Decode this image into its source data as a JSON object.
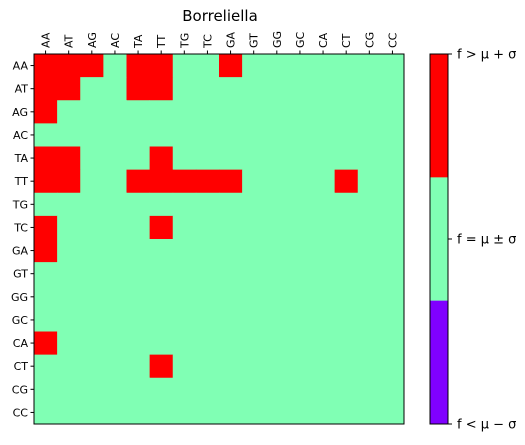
{
  "chart_data": {
    "type": "heatmap",
    "title": "Borreliella",
    "xlabel": "",
    "ylabel": "",
    "x_categories": [
      "AA",
      "AT",
      "AG",
      "AC",
      "TA",
      "TT",
      "TG",
      "TC",
      "GA",
      "GT",
      "GG",
      "GC",
      "CA",
      "CT",
      "CG",
      "CC"
    ],
    "y_categories": [
      "AA",
      "AT",
      "AG",
      "AC",
      "TA",
      "TT",
      "TG",
      "TC",
      "GA",
      "GT",
      "GG",
      "GC",
      "CA",
      "CT",
      "CG",
      "CC"
    ],
    "values_legend": {
      "1": "above",
      "0": "within",
      "-1": "below"
    },
    "values": [
      [
        1,
        1,
        1,
        0,
        1,
        1,
        0,
        0,
        1,
        0,
        0,
        0,
        0,
        0,
        0,
        0
      ],
      [
        1,
        1,
        0,
        0,
        1,
        1,
        0,
        0,
        0,
        0,
        0,
        0,
        0,
        0,
        0,
        0
      ],
      [
        1,
        0,
        0,
        0,
        0,
        0,
        0,
        0,
        0,
        0,
        0,
        0,
        0,
        0,
        0,
        0
      ],
      [
        0,
        0,
        0,
        0,
        0,
        0,
        0,
        0,
        0,
        0,
        0,
        0,
        0,
        0,
        0,
        0
      ],
      [
        1,
        1,
        0,
        0,
        0,
        1,
        0,
        0,
        0,
        0,
        0,
        0,
        0,
        0,
        0,
        0
      ],
      [
        1,
        1,
        0,
        0,
        1,
        1,
        1,
        1,
        1,
        0,
        0,
        0,
        0,
        1,
        0,
        0
      ],
      [
        0,
        0,
        0,
        0,
        0,
        0,
        0,
        0,
        0,
        0,
        0,
        0,
        0,
        0,
        0,
        0
      ],
      [
        1,
        0,
        0,
        0,
        0,
        1,
        0,
        0,
        0,
        0,
        0,
        0,
        0,
        0,
        0,
        0
      ],
      [
        1,
        0,
        0,
        0,
        0,
        0,
        0,
        0,
        0,
        0,
        0,
        0,
        0,
        0,
        0,
        0
      ],
      [
        0,
        0,
        0,
        0,
        0,
        0,
        0,
        0,
        0,
        0,
        0,
        0,
        0,
        0,
        0,
        0
      ],
      [
        0,
        0,
        0,
        0,
        0,
        0,
        0,
        0,
        0,
        0,
        0,
        0,
        0,
        0,
        0,
        0
      ],
      [
        0,
        0,
        0,
        0,
        0,
        0,
        0,
        0,
        0,
        0,
        0,
        0,
        0,
        0,
        0,
        0
      ],
      [
        1,
        0,
        0,
        0,
        0,
        0,
        0,
        0,
        0,
        0,
        0,
        0,
        0,
        0,
        0,
        0
      ],
      [
        0,
        0,
        0,
        0,
        0,
        1,
        0,
        0,
        0,
        0,
        0,
        0,
        0,
        0,
        0,
        0
      ],
      [
        0,
        0,
        0,
        0,
        0,
        0,
        0,
        0,
        0,
        0,
        0,
        0,
        0,
        0,
        0,
        0
      ],
      [
        0,
        0,
        0,
        0,
        0,
        0,
        0,
        0,
        0,
        0,
        0,
        0,
        0,
        0,
        0,
        0
      ]
    ],
    "colorbar": [
      {
        "key": "below",
        "value": -1,
        "label": "f < μ − σ",
        "color": "#8000ff"
      },
      {
        "key": "within",
        "value": 0,
        "label": "f = μ ± σ",
        "color": "#80ffb4"
      },
      {
        "key": "above",
        "value": 1,
        "label": "f > μ + σ",
        "color": "#ff0000"
      }
    ],
    "x_tick_position": "top",
    "grid": false,
    "legend": "colorbar-right"
  }
}
